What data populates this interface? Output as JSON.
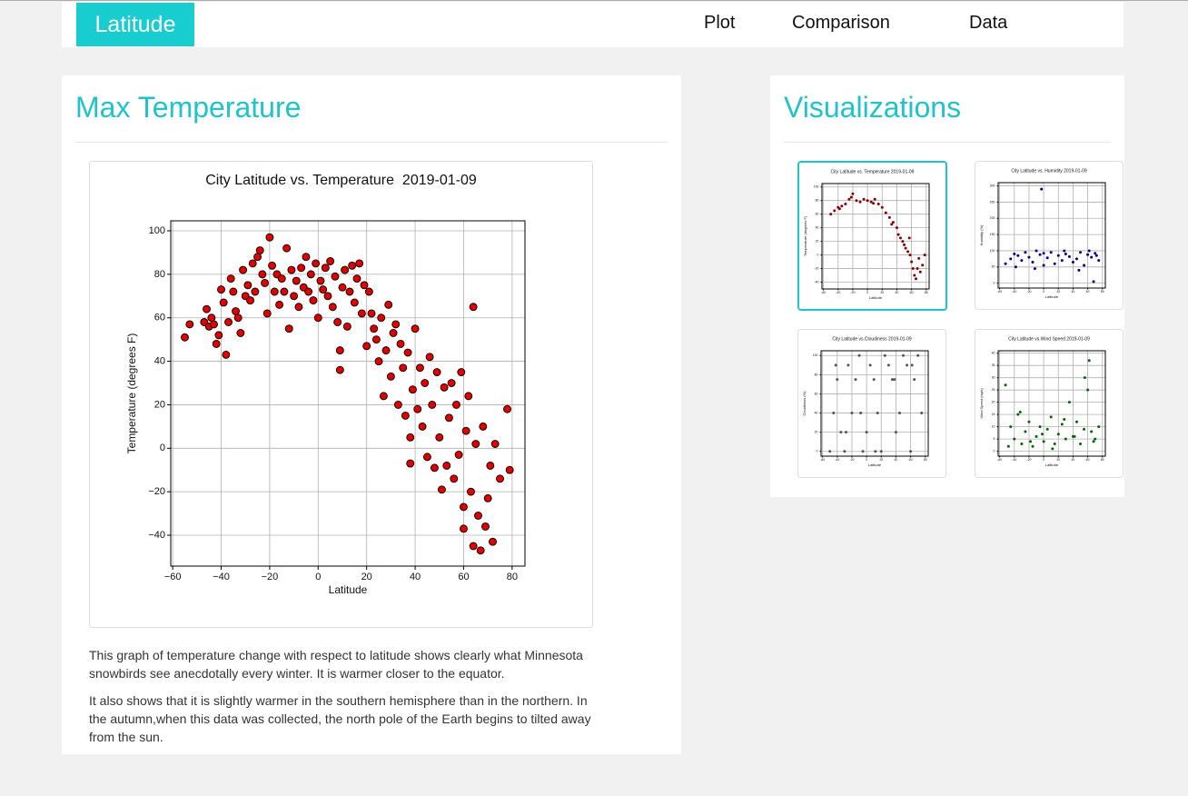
{
  "nav": {
    "brand": "Latitude",
    "links": [
      "Plot",
      "Comparison",
      "Data"
    ]
  },
  "main": {
    "heading": "Max Temperature",
    "paragraphs": [
      "This graph of temperature change with respect to latitude shows clearly what Minnesota snowbirds see anecdotally every winter. It is warmer closer to the equator.",
      "It also shows that it is slightly warmer in the southern hemisphere than in the northern. In the autumn,when this data was collected, the north pole of the Earth begins to tilted away from the sun."
    ]
  },
  "sidebar": {
    "heading": "Visualizations"
  },
  "chart_data": [
    {
      "type": "scatter",
      "title": "City Latitude vs. Temperature  2019-01-09",
      "xlabel": "Latitude",
      "ylabel": "Temperature (degrees F)",
      "color": "#e00000",
      "edgecolor": "#000000",
      "grid": true,
      "xlim": [
        -60.8,
        85.3
      ],
      "ylim": [
        -54.2,
        104.6
      ],
      "xticks": [
        {
          "value": -60,
          "label": "−60"
        },
        {
          "value": -40,
          "label": "−40"
        },
        {
          "value": -20,
          "label": "−20"
        },
        0,
        20,
        40,
        60,
        80
      ],
      "yticks": [
        {
          "value": -40,
          "label": "−40"
        },
        {
          "value": -20,
          "label": "−20"
        },
        0,
        20,
        40,
        60,
        80,
        100
      ],
      "x": [
        -55,
        -53,
        -47,
        -46,
        -45,
        -44,
        -43,
        -42,
        -41,
        -40,
        -39,
        -38,
        -37,
        -36,
        -35,
        -34,
        -33,
        -32,
        -31,
        -30,
        -29,
        -28,
        -27,
        -26,
        -25,
        -24,
        -23,
        -22,
        -21,
        -20,
        -19,
        -18,
        -17,
        -16,
        -15,
        -14,
        -13,
        -12,
        -11,
        -10,
        -9,
        -8,
        -7,
        -6,
        -5,
        -4,
        -3,
        -2,
        -1,
        0,
        1,
        2,
        3,
        4,
        5,
        6,
        7,
        8,
        9,
        9,
        10,
        11,
        12,
        13,
        14,
        15,
        16,
        17,
        18,
        19,
        20,
        21,
        22,
        23,
        24,
        25,
        26,
        27,
        28,
        29,
        30,
        31,
        32,
        33,
        34,
        35,
        36,
        37,
        38,
        38,
        39,
        40,
        41,
        42,
        43,
        44,
        45,
        46,
        47,
        48,
        49,
        50,
        51,
        52,
        53,
        54,
        55,
        56,
        57,
        58,
        59,
        60,
        60,
        61,
        62,
        63,
        64,
        64,
        65,
        66,
        67,
        68,
        69,
        70,
        71,
        72,
        73,
        75,
        78,
        79
      ],
      "y": [
        51,
        57,
        58,
        64,
        56,
        60,
        57,
        48,
        52,
        73,
        67,
        43,
        58,
        78,
        72,
        63,
        60,
        53,
        82,
        70,
        75,
        68,
        85,
        72,
        88,
        91,
        80,
        76,
        62,
        97,
        84,
        72,
        80,
        66,
        78,
        72,
        92,
        55,
        82,
        70,
        77,
        65,
        83,
        74,
        88,
        72,
        80,
        68,
        85,
        60,
        77,
        73,
        83,
        70,
        86,
        65,
        79,
        58,
        45,
        36,
        74,
        82,
        56,
        72,
        84,
        67,
        78,
        85,
        62,
        75,
        47,
        72,
        62,
        55,
        50,
        40,
        60,
        24,
        45,
        66,
        33,
        53,
        57,
        20,
        48,
        37,
        15,
        44,
        -7,
        5,
        27,
        55,
        18,
        37,
        10,
        30,
        -4,
        42,
        20,
        -9,
        35,
        5,
        -19,
        28,
        -8,
        14,
        30,
        -14,
        20,
        -3,
        35,
        -27,
        -37,
        8,
        24,
        -20,
        -45,
        65,
        2,
        -31,
        -47,
        10,
        -36,
        -23,
        -8,
        -43,
        2,
        -14,
        18,
        -10
      ]
    },
    {
      "type": "scatter",
      "title": "City Latitude vs. Temperature 2019-01-09",
      "xlabel": "Latitude",
      "ylabel": "Temperature (degrees F)",
      "color": "#8b0000",
      "grid": true,
      "xlim": [
        -62,
        84
      ],
      "ylim": [
        -50,
        105
      ],
      "xticks": [
        -60,
        -40,
        -20,
        0,
        20,
        40,
        60,
        80
      ],
      "yticks": [
        -40,
        -20,
        0,
        20,
        40,
        60,
        80,
        100
      ],
      "x": [
        -50,
        -45,
        -40,
        -35,
        -30,
        -25,
        -20,
        -15,
        -10,
        -5,
        0,
        5,
        10,
        15,
        20,
        25,
        30,
        35,
        40,
        42,
        45,
        48,
        50,
        52,
        55,
        58,
        60,
        62,
        64,
        66,
        68,
        70,
        72,
        75,
        78,
        -38,
        -22,
        8,
        33,
        57
      ],
      "y": [
        60,
        65,
        70,
        72,
        75,
        82,
        90,
        80,
        78,
        82,
        80,
        78,
        82,
        75,
        70,
        62,
        55,
        48,
        40,
        30,
        25,
        20,
        15,
        10,
        5,
        0,
        -10,
        -20,
        -30,
        -35,
        -20,
        -5,
        -25,
        -15,
        0,
        68,
        85,
        76,
        45,
        25
      ]
    },
    {
      "type": "scatter",
      "title": "City Latitude vs. Humidity 2019-01-09",
      "xlabel": "Latitude",
      "ylabel": "Humidity (%)",
      "color": "#00008b",
      "grid": true,
      "xlim": [
        -62,
        84
      ],
      "ylim": [
        -15,
        310
      ],
      "xticks": [
        -60,
        -40,
        -20,
        0,
        20,
        40,
        60,
        80
      ],
      "yticks": [
        0,
        50,
        100,
        150,
        200,
        250,
        300
      ],
      "x": [
        -52,
        -45,
        -40,
        -35,
        -30,
        -25,
        -20,
        -15,
        -10,
        -5,
        0,
        5,
        10,
        15,
        20,
        25,
        30,
        35,
        40,
        45,
        50,
        55,
        60,
        65,
        70,
        75,
        -38,
        -12,
        -3,
        28,
        48,
        62,
        72,
        68,
        0
      ],
      "y": [
        60,
        75,
        90,
        85,
        70,
        95,
        80,
        65,
        100,
        88,
        92,
        78,
        95,
        60,
        85,
        70,
        90,
        82,
        65,
        75,
        95,
        55,
        88,
        80,
        92,
        70,
        50,
        45,
        290,
        100,
        40,
        100,
        85,
        5,
        55
      ]
    },
    {
      "type": "scatter",
      "title": "City Latitude vs.Cloudiness 2019-01-09",
      "xlabel": "Latitude",
      "ylabel": "Cloudiness (%)",
      "color": "#555555",
      "grid": true,
      "xlim": [
        -62,
        84
      ],
      "ylim": [
        -5,
        105
      ],
      "xticks": [
        -60,
        -40,
        -20,
        0,
        20,
        40,
        60,
        80
      ],
      "yticks": [
        0,
        20,
        40,
        60,
        80,
        100
      ],
      "x": [
        -50,
        -45,
        -40,
        -35,
        -30,
        -25,
        -20,
        -15,
        -10,
        -5,
        0,
        5,
        10,
        15,
        20,
        25,
        30,
        35,
        40,
        45,
        50,
        55,
        60,
        65,
        70,
        75,
        -42,
        -28,
        -8,
        12,
        38,
        62
      ],
      "y": [
        0,
        40,
        75,
        20,
        0,
        90,
        40,
        75,
        100,
        0,
        20,
        90,
        75,
        40,
        0,
        100,
        90,
        75,
        20,
        40,
        100,
        90,
        0,
        75,
        100,
        40,
        90,
        20,
        40,
        0,
        75,
        90
      ]
    },
    {
      "type": "scatter",
      "title": "City Latitude vs.Wind Speed 2019-01-09",
      "xlabel": "Latitude",
      "ylabel": "Wind Speed (mph)",
      "color": "#006400",
      "grid": true,
      "xlim": [
        -62,
        84
      ],
      "ylim": [
        -2,
        41
      ],
      "xticks": [
        -60,
        -40,
        -20,
        0,
        20,
        40,
        60,
        80
      ],
      "yticks": [
        0,
        5,
        10,
        15,
        20,
        25,
        30,
        35,
        40
      ],
      "x": [
        -52,
        -45,
        -40,
        -35,
        -30,
        -25,
        -20,
        -15,
        -10,
        -5,
        0,
        5,
        10,
        15,
        20,
        25,
        30,
        35,
        40,
        45,
        50,
        55,
        60,
        65,
        70,
        75,
        -48,
        -32,
        -18,
        -2,
        12,
        28,
        42,
        56,
        62,
        68
      ],
      "y": [
        27,
        10,
        5,
        15,
        3,
        8,
        12,
        2,
        6,
        10,
        4,
        9,
        14,
        3,
        7,
        11,
        5,
        20,
        6,
        12,
        3,
        9,
        25,
        8,
        5,
        10,
        2,
        16,
        4,
        7,
        1,
        13,
        6,
        30,
        37,
        4
      ]
    }
  ]
}
